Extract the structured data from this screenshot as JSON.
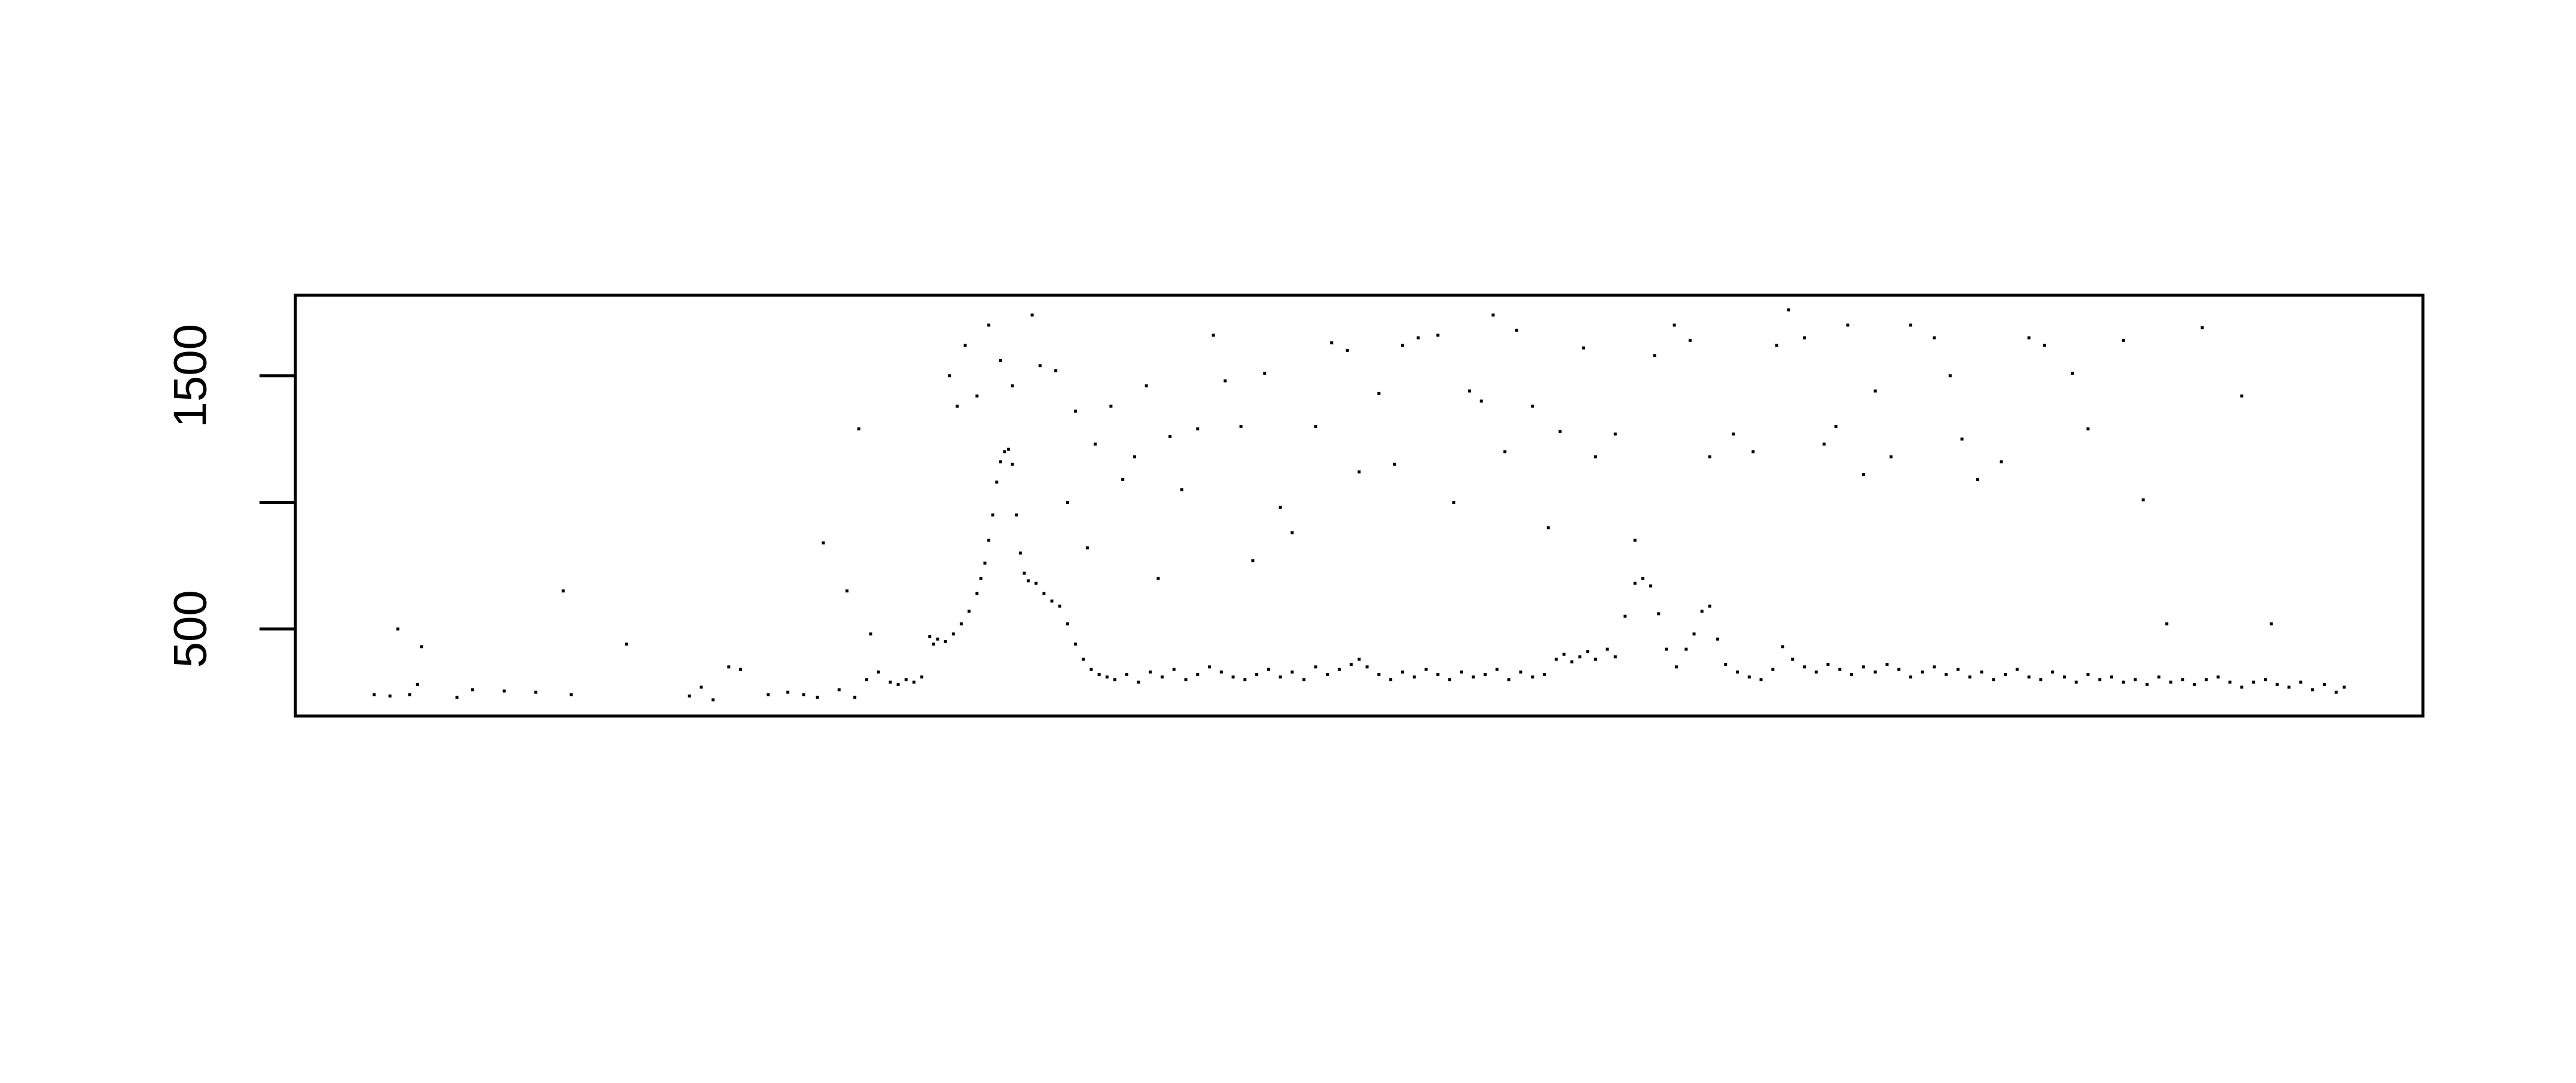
{
  "chart_data": {
    "type": "scatter",
    "color": "#000000",
    "x": [
      0,
      8,
      12,
      18,
      22,
      24,
      42,
      50,
      66,
      82,
      96,
      100,
      128,
      160,
      166,
      172,
      180,
      186,
      200,
      210,
      218,
      225,
      228,
      236,
      240,
      244,
      246,
      250,
      252,
      256,
      262,
      266,
      270,
      274,
      278,
      282,
      284,
      286,
      290,
      294,
      298,
      302,
      306,
      308,
      310,
      312,
      314,
      316,
      318,
      320,
      322,
      324,
      326,
      328,
      330,
      332,
      336,
      340,
      344,
      348,
      352,
      356,
      360,
      364,
      368,
      372,
      376,
      382,
      388,
      394,
      400,
      406,
      412,
      418,
      424,
      430,
      436,
      442,
      448,
      454,
      460,
      466,
      472,
      478,
      484,
      490,
      496,
      500,
      504,
      510,
      516,
      522,
      528,
      534,
      540,
      546,
      552,
      558,
      564,
      570,
      576,
      582,
      588,
      594,
      600,
      604,
      608,
      612,
      616,
      620,
      626,
      630,
      635,
      640,
      644,
      648,
      652,
      656,
      661,
      666,
      670,
      674,
      678,
      682,
      686,
      692,
      698,
      704,
      710,
      715,
      720,
      726,
      732,
      738,
      744,
      750,
      756,
      762,
      768,
      774,
      780,
      786,
      792,
      798,
      804,
      810,
      816,
      822,
      828,
      834,
      840,
      846,
      852,
      858,
      864,
      870,
      876,
      882,
      888,
      894,
      900,
      906,
      912,
      918,
      924,
      930,
      936,
      942,
      948,
      954,
      960,
      966,
      972,
      978,
      984,
      990,
      996,
      1000,
      292,
      296,
      300,
      306,
      312,
      318,
      324,
      334,
      338,
      346,
      352,
      356,
      362,
      366,
      374,
      380,
      386,
      392,
      398,
      404,
      410,
      418,
      426,
      432,
      440,
      446,
      452,
      460,
      466,
      478,
      486,
      494,
      500,
      510,
      518,
      522,
      530,
      540,
      548,
      556,
      562,
      568,
      574,
      580,
      588,
      596,
      602,
      614,
      620,
      630,
      640,
      650,
      660,
      668,
      678,
      690,
      700,
      712,
      718,
      726,
      736,
      742,
      748,
      756,
      762,
      770,
      780,
      792,
      800,
      806,
      814,
      826,
      840,
      848,
      862,
      870,
      888,
      898,
      910,
      928,
      948,
      963
    ],
    "values": [
      240,
      235,
      500,
      240,
      280,
      430,
      230,
      260,
      255,
      250,
      650,
      240,
      440,
      235,
      270,
      220,
      350,
      340,
      240,
      250,
      240,
      230,
      840,
      260,
      650,
      230,
      1290,
      300,
      480,
      330,
      290,
      280,
      300,
      290,
      310,
      470,
      440,
      460,
      450,
      480,
      520,
      570,
      640,
      700,
      760,
      850,
      950,
      1080,
      1160,
      1200,
      1210,
      1150,
      950,
      800,
      720,
      690,
      680,
      640,
      610,
      590,
      520,
      440,
      380,
      340,
      320,
      310,
      300,
      320,
      290,
      330,
      310,
      340,
      300,
      320,
      350,
      330,
      310,
      300,
      320,
      340,
      310,
      330,
      300,
      350,
      320,
      340,
      360,
      380,
      350,
      320,
      300,
      330,
      310,
      340,
      320,
      300,
      330,
      310,
      320,
      340,
      300,
      330,
      310,
      320,
      380,
      400,
      370,
      390,
      410,
      380,
      420,
      390,
      550,
      680,
      700,
      670,
      560,
      420,
      350,
      420,
      480,
      570,
      590,
      460,
      360,
      330,
      310,
      300,
      340,
      430,
      380,
      350,
      330,
      360,
      340,
      320,
      350,
      330,
      360,
      340,
      310,
      330,
      350,
      320,
      340,
      310,
      330,
      300,
      320,
      340,
      310,
      300,
      330,
      310,
      290,
      320,
      300,
      310,
      290,
      300,
      280,
      310,
      290,
      300,
      280,
      300,
      310,
      290,
      270,
      290,
      300,
      280,
      270,
      290,
      260,
      280,
      250,
      270,
      1500,
      1380,
      1620,
      1420,
      1700,
      1560,
      1460,
      1740,
      1540,
      1520,
      1000,
      1360,
      820,
      1230,
      1380,
      1090,
      1180,
      1460,
      700,
      1260,
      1050,
      1290,
      1660,
      1480,
      1300,
      770,
      1510,
      980,
      880,
      1300,
      1630,
      1600,
      1120,
      1430,
      1150,
      1620,
      1650,
      1660,
      1000,
      1440,
      1400,
      1740,
      1200,
      1680,
      1380,
      900,
      1280,
      1610,
      1180,
      1270,
      850,
      1580,
      1700,
      1640,
      1180,
      1270,
      1200,
      1620,
      1760,
      1650,
      1230,
      1300,
      1700,
      1110,
      1440,
      1180,
      1700,
      1650,
      1500,
      1250,
      1090,
      1160,
      1650,
      1620,
      1510,
      1290,
      1640,
      1010,
      520,
      1690,
      1420,
      520
    ],
    "xlim": [
      -40,
      1040
    ],
    "ylim": [
      156,
      1818
    ],
    "yticks": [
      500,
      {
        "value": 1000,
        "label": null
      },
      1500
    ]
  }
}
